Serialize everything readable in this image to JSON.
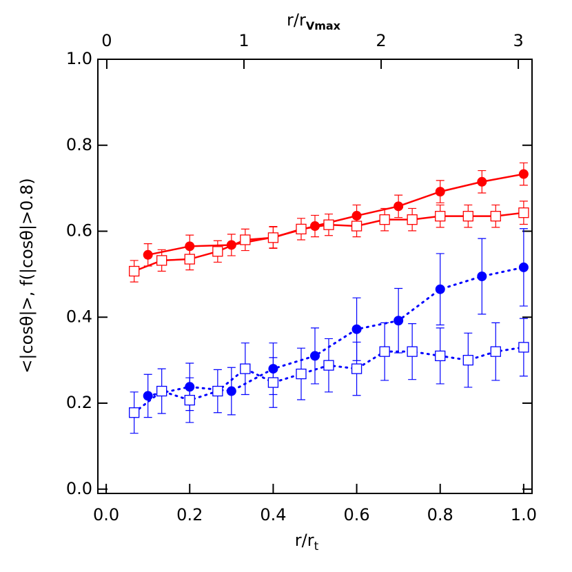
{
  "chart_data": {
    "type": "errorbar",
    "xlabel": {
      "main": "r/r",
      "sub": "t"
    },
    "x2label": {
      "main": "r/r",
      "sub": "Vmax"
    },
    "ylabel": "<|cosθ|>, f(|cosθ|>0.8)",
    "xlim": [
      -0.02,
      1.02
    ],
    "xticks": [
      {
        "value": 0,
        "label": "0.0"
      },
      0.2,
      0.4,
      0.6,
      0.8,
      {
        "value": 1,
        "label": "1.0"
      }
    ],
    "x2lim": [
      -0.065,
      3.1
    ],
    "x2ticks": [
      0,
      1,
      2,
      3
    ],
    "ylim": [
      -0.01,
      1.0
    ],
    "yticks": [
      {
        "value": 0,
        "label": "0.0"
      },
      0.2,
      0.4,
      0.6,
      0.8,
      {
        "value": 1,
        "label": "1.0"
      }
    ],
    "series": [
      {
        "color": "#ff0000",
        "marker": "circle",
        "linestyle": "solid",
        "x": [
          0.1,
          0.2,
          0.3,
          0.4,
          0.5,
          0.6,
          0.7,
          0.8,
          0.9,
          1.0
        ],
        "values": [
          0.545,
          0.565,
          0.568,
          0.586,
          0.612,
          0.636,
          0.658,
          0.692,
          0.715,
          0.733
        ],
        "errors": [
          0.026,
          0.026,
          0.025,
          0.025,
          0.025,
          0.025,
          0.026,
          0.026,
          0.026,
          0.026
        ]
      },
      {
        "color": "#ff0000",
        "marker": "square",
        "linestyle": "solid",
        "x": [
          0.067,
          0.133,
          0.2,
          0.267,
          0.333,
          0.4,
          0.467,
          0.533,
          0.6,
          0.667,
          0.733,
          0.8,
          0.867,
          0.933,
          1.0
        ],
        "values": [
          0.507,
          0.532,
          0.535,
          0.553,
          0.58,
          0.585,
          0.605,
          0.615,
          0.612,
          0.627,
          0.627,
          0.635,
          0.635,
          0.635,
          0.643
        ],
        "errors": [
          0.025,
          0.025,
          0.025,
          0.025,
          0.025,
          0.025,
          0.025,
          0.025,
          0.025,
          0.026,
          0.026,
          0.026,
          0.026,
          0.026,
          0.027
        ]
      },
      {
        "color": "#0000ff",
        "marker": "circle",
        "linestyle": "dotted",
        "x": [
          0.1,
          0.2,
          0.3,
          0.4,
          0.5,
          0.6,
          0.7,
          0.8,
          0.9,
          1.0
        ],
        "values": [
          0.217,
          0.238,
          0.228,
          0.28,
          0.31,
          0.372,
          0.392,
          0.465,
          0.495,
          0.516
        ],
        "errors": [
          0.05,
          0.055,
          0.055,
          0.06,
          0.065,
          0.073,
          0.075,
          0.083,
          0.088,
          0.09
        ]
      },
      {
        "color": "#0000ff",
        "marker": "square",
        "linestyle": "dotted",
        "x": [
          0.067,
          0.133,
          0.2,
          0.267,
          0.333,
          0.4,
          0.467,
          0.533,
          0.6,
          0.667,
          0.733,
          0.8,
          0.867,
          0.933,
          1.0
        ],
        "values": [
          0.178,
          0.228,
          0.207,
          0.228,
          0.28,
          0.248,
          0.268,
          0.288,
          0.28,
          0.32,
          0.32,
          0.31,
          0.3,
          0.32,
          0.33
        ],
        "errors": [
          0.048,
          0.052,
          0.052,
          0.05,
          0.06,
          0.058,
          0.06,
          0.062,
          0.062,
          0.067,
          0.065,
          0.065,
          0.063,
          0.067,
          0.067
        ]
      }
    ]
  }
}
